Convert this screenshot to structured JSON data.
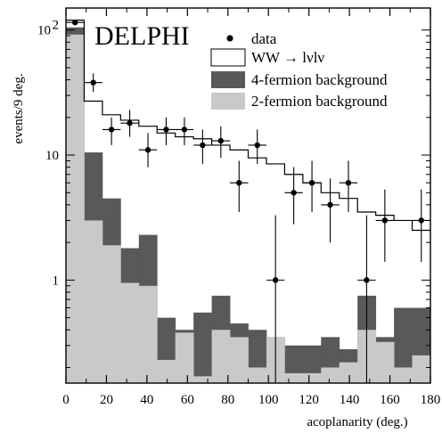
{
  "chart_data": {
    "type": "histogram",
    "title": "",
    "experiment_label": "DELPHI",
    "xlabel": "acoplanarity (deg.)",
    "ylabel": "events/9 deg.",
    "xlim": [
      0,
      180
    ],
    "ylim": [
      0.15,
      150
    ],
    "yscale": "log",
    "bin_width": 9,
    "x_ticks": [
      "0",
      "20",
      "40",
      "60",
      "80",
      "100",
      "120",
      "140",
      "160",
      "180"
    ],
    "y_ticks": [
      {
        "value": 1,
        "label": "1"
      },
      {
        "value": 10,
        "label": "10"
      },
      {
        "value": 100,
        "label": "10",
        "exponent": "2"
      }
    ],
    "legend_position": "top-right",
    "legend": [
      {
        "label": "data",
        "style": "dot"
      },
      {
        "label": "WW → lνlν",
        "style": "open-box"
      },
      {
        "label": "4-fermion background",
        "style": "dark-box"
      },
      {
        "label": "2-fermion background",
        "style": "light-box"
      }
    ],
    "colors": {
      "two_fermion": "#c9c9c9",
      "four_fermion": "#595959",
      "frame": "#000000"
    },
    "bin_edges": [
      0,
      9,
      18,
      27,
      36,
      45,
      54,
      63,
      72,
      81,
      90,
      99,
      108,
      117,
      126,
      135,
      144,
      153,
      162,
      171,
      180
    ],
    "two_fermion_background": [
      92,
      3.0,
      1.9,
      0.95,
      0.9,
      0.23,
      0.38,
      0.17,
      0.4,
      0.35,
      0.2,
      0.35,
      0.18,
      0.18,
      0.2,
      0.22,
      0.4,
      0.32,
      0.2,
      0.25
    ],
    "total_background_stack": [
      105,
      10.5,
      4.5,
      1.8,
      2.3,
      0.5,
      0.4,
      0.55,
      0.75,
      0.45,
      0.4,
      0.35,
      0.3,
      0.3,
      0.35,
      0.28,
      0.75,
      0.35,
      0.6,
      0.6
    ],
    "ww_total": [
      120,
      27,
      21,
      19,
      17,
      15,
      14,
      13.5,
      12,
      11,
      9.5,
      8.5,
      7,
      6,
      5,
      4.5,
      3.5,
      3.3,
      3.0,
      2.5
    ],
    "data": [
      {
        "x": 4.5,
        "y": 115,
        "yerr_low": 0,
        "yerr_high": 0
      },
      {
        "x": 13.5,
        "y": 38,
        "yerr_low": 6,
        "yerr_high": 7
      },
      {
        "x": 22.5,
        "y": 16,
        "yerr_low": 4,
        "yerr_high": 4
      },
      {
        "x": 31.5,
        "y": 18,
        "yerr_low": 4,
        "yerr_high": 5
      },
      {
        "x": 40.5,
        "y": 11,
        "yerr_low": 3,
        "yerr_high": 4
      },
      {
        "x": 49.5,
        "y": 16,
        "yerr_low": 4,
        "yerr_high": 4
      },
      {
        "x": 58.5,
        "y": 16,
        "yerr_low": 4,
        "yerr_high": 4
      },
      {
        "x": 67.5,
        "y": 12,
        "yerr_low": 3.5,
        "yerr_high": 4
      },
      {
        "x": 76.5,
        "y": 13,
        "yerr_low": 3.5,
        "yerr_high": 4
      },
      {
        "x": 85.5,
        "y": 6,
        "yerr_low": 2.5,
        "yerr_high": 3
      },
      {
        "x": 94.5,
        "y": 12,
        "yerr_low": 3.5,
        "yerr_high": 4
      },
      {
        "x": 103.5,
        "y": 1,
        "yerr_low": 0.85,
        "yerr_high": 2.3
      },
      {
        "x": 112.5,
        "y": 5,
        "yerr_low": 2.2,
        "yerr_high": 3
      },
      {
        "x": 121.5,
        "y": 6,
        "yerr_low": 2.5,
        "yerr_high": 3
      },
      {
        "x": 130.5,
        "y": 4,
        "yerr_low": 2,
        "yerr_high": 2.5
      },
      {
        "x": 139.5,
        "y": 6,
        "yerr_low": 2.5,
        "yerr_high": 3
      },
      {
        "x": 148.5,
        "y": 1,
        "yerr_low": 0.85,
        "yerr_high": 2.3
      },
      {
        "x": 157.5,
        "y": 3,
        "yerr_low": 1.6,
        "yerr_high": 2.3
      },
      {
        "x": 175.5,
        "y": 3,
        "yerr_low": 1.6,
        "yerr_high": 2.3
      }
    ]
  }
}
